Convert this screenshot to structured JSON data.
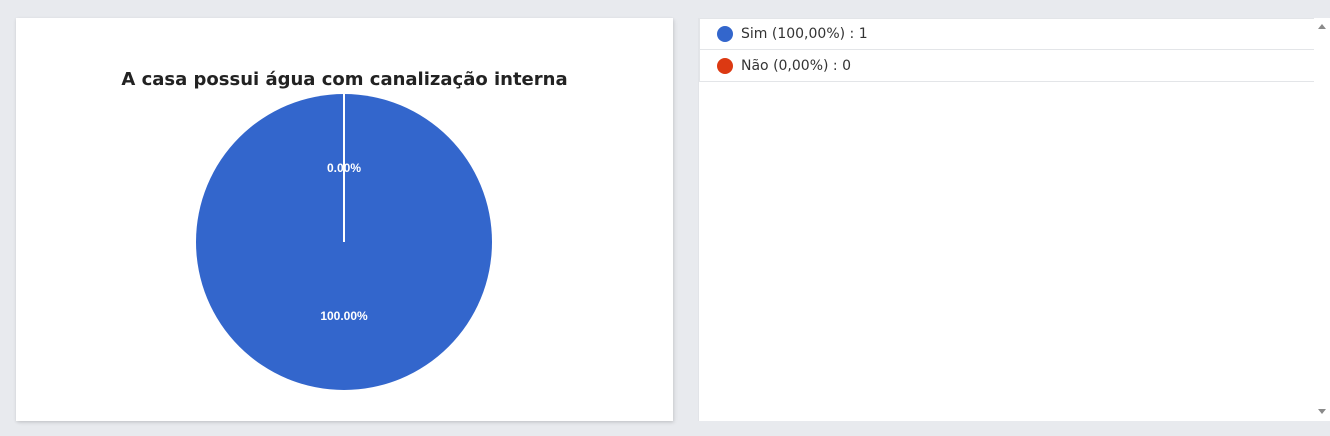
{
  "chart_data": {
    "type": "pie",
    "title": "A casa possui água com canalização interna",
    "slices": [
      {
        "label": "Sim",
        "value": 1,
        "percent": 100.0,
        "data_label": "100.00%",
        "color": "#3366cc"
      },
      {
        "label": "Não",
        "value": 0,
        "percent": 0.0,
        "data_label": "0.00%",
        "color": "#dc3912"
      }
    ]
  },
  "legend": {
    "items": [
      {
        "text": "Sim (100,00%) : 1",
        "color": "#3366cc"
      },
      {
        "text": "Não (0,00%) : 0",
        "color": "#dc3912"
      }
    ]
  }
}
